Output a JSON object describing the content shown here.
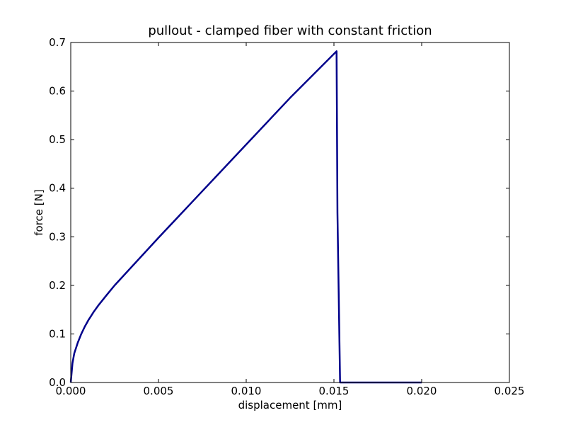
{
  "chart_data": {
    "type": "line",
    "title": "pullout - clamped fiber with constant friction",
    "xlabel": "displacement [mm]",
    "ylabel": "force [N]",
    "xlim": [
      0.0,
      0.025
    ],
    "ylim": [
      0.0,
      0.7
    ],
    "grid": false,
    "xticks": [
      0.0,
      0.005,
      0.01,
      0.015,
      0.02,
      0.025
    ],
    "xtick_labels": [
      "0.000",
      "0.005",
      "0.010",
      "0.015",
      "0.020",
      "0.025"
    ],
    "yticks": [
      0.0,
      0.1,
      0.2,
      0.3,
      0.4,
      0.5,
      0.6,
      0.7
    ],
    "ytick_labels": [
      "0.0",
      "0.1",
      "0.2",
      "0.3",
      "0.4",
      "0.5",
      "0.6",
      "0.7"
    ],
    "series": [
      {
        "color": "#00008b",
        "x": [
          0.0,
          0.0001,
          0.0002,
          0.0004,
          0.0006,
          0.0008,
          0.001,
          0.0013,
          0.0016,
          0.002,
          0.0025,
          0.005,
          0.0075,
          0.01,
          0.0125,
          0.01515,
          0.0152,
          0.01535,
          0.02
        ],
        "y": [
          0.0,
          0.04,
          0.06,
          0.082,
          0.1,
          0.115,
          0.128,
          0.145,
          0.16,
          0.178,
          0.2,
          0.298,
          0.394,
          0.49,
          0.586,
          0.682,
          0.35,
          0.0,
          0.0
        ]
      }
    ]
  }
}
